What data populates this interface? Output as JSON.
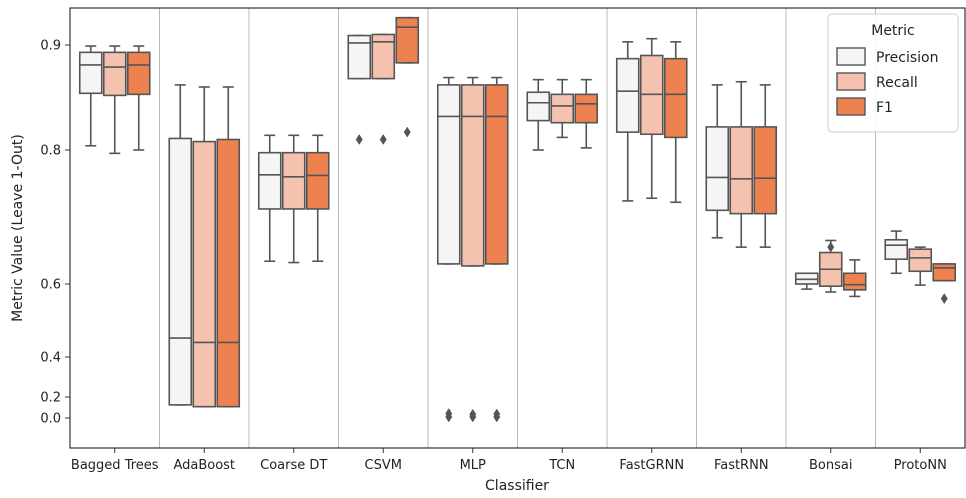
{
  "chart_data": {
    "type": "box",
    "xlabel": "Classifier",
    "ylabel": "Metric Value (Leave 1-Out)",
    "categories": [
      "Bagged Trees",
      "AdaBoost",
      "Coarse DT",
      "CSVM",
      "MLP",
      "TCN",
      "FastGRNN",
      "FastRNN",
      "Bonsai",
      "ProtoNN"
    ],
    "y_ticks": [
      {
        "value": 0.0,
        "label": "0.0"
      },
      {
        "value": 0.2,
        "label": "0.2"
      },
      {
        "value": 0.4,
        "label": "0.4"
      },
      {
        "value": 0.6,
        "label": "0.6"
      },
      {
        "value": 0.8,
        "label": "0.8"
      },
      {
        "value": 0.9,
        "label": "0.9"
      }
    ],
    "grid": {
      "vertical_separators": true,
      "horizontal": false
    },
    "legend": {
      "title": "Metric",
      "placement": "top-right"
    },
    "series": [
      {
        "name": "Precision",
        "color": "#f5f5f5",
        "boxes": [
          {
            "whislo": 0.804,
            "q1": 0.854,
            "med": 0.881,
            "q3": 0.893,
            "whishi": 0.899,
            "fliers": []
          },
          {
            "whislo": 0.125,
            "q1": 0.125,
            "med": 0.452,
            "q3": 0.811,
            "whishi": 0.862,
            "fliers": []
          },
          {
            "whislo": 0.634,
            "q1": 0.712,
            "med": 0.763,
            "q3": 0.796,
            "whishi": 0.814,
            "fliers": []
          },
          {
            "whislo": 0.868,
            "q1": 0.868,
            "med": 0.902,
            "q3": 0.909,
            "whishi": 0.909,
            "fliers": [
              0.81
            ]
          },
          {
            "whislo": 0.63,
            "q1": 0.63,
            "med": 0.832,
            "q3": 0.862,
            "whishi": 0.869,
            "fliers": [
              0.042,
              0.01
            ]
          },
          {
            "whislo": 0.8,
            "q1": 0.828,
            "med": 0.845,
            "q3": 0.855,
            "whishi": 0.867,
            "fliers": []
          },
          {
            "whislo": 0.724,
            "q1": 0.817,
            "med": 0.856,
            "q3": 0.887,
            "whishi": 0.903,
            "fliers": []
          },
          {
            "whislo": 0.669,
            "q1": 0.71,
            "med": 0.759,
            "q3": 0.822,
            "whishi": 0.862,
            "fliers": []
          },
          {
            "whislo": 0.586,
            "q1": 0.6,
            "med": 0.607,
            "q3": 0.616,
            "whishi": 0.616,
            "fliers": []
          },
          {
            "whislo": 0.616,
            "q1": 0.637,
            "med": 0.658,
            "q3": 0.666,
            "whishi": 0.679,
            "fliers": []
          }
        ]
      },
      {
        "name": "Recall",
        "color": "#f4c2ae",
        "boxes": [
          {
            "whislo": 0.795,
            "q1": 0.852,
            "med": 0.879,
            "q3": 0.893,
            "whishi": 0.899,
            "fliers": []
          },
          {
            "whislo": 0.108,
            "q1": 0.108,
            "med": 0.44,
            "q3": 0.808,
            "whishi": 0.86,
            "fliers": []
          },
          {
            "whislo": 0.632,
            "q1": 0.712,
            "med": 0.76,
            "q3": 0.796,
            "whishi": 0.814,
            "fliers": []
          },
          {
            "whislo": 0.868,
            "q1": 0.868,
            "med": 0.903,
            "q3": 0.91,
            "whishi": 0.91,
            "fliers": [
              0.81
            ]
          },
          {
            "whislo": 0.627,
            "q1": 0.627,
            "med": 0.832,
            "q3": 0.862,
            "whishi": 0.869,
            "fliers": [
              0.035,
              0.01
            ]
          },
          {
            "whislo": 0.812,
            "q1": 0.826,
            "med": 0.842,
            "q3": 0.853,
            "whishi": 0.867,
            "fliers": []
          },
          {
            "whislo": 0.728,
            "q1": 0.815,
            "med": 0.853,
            "q3": 0.89,
            "whishi": 0.906,
            "fliers": []
          },
          {
            "whislo": 0.655,
            "q1": 0.705,
            "med": 0.757,
            "q3": 0.822,
            "whishi": 0.865,
            "fliers": []
          },
          {
            "whislo": 0.578,
            "q1": 0.594,
            "med": 0.622,
            "q3": 0.647,
            "whishi": 0.665,
            "fliers": [
              0.655
            ]
          },
          {
            "whislo": 0.597,
            "q1": 0.619,
            "med": 0.639,
            "q3": 0.652,
            "whishi": 0.655,
            "fliers": []
          }
        ]
      },
      {
        "name": "F1",
        "color": "#ee8150",
        "boxes": [
          {
            "whislo": 0.8,
            "q1": 0.853,
            "med": 0.881,
            "q3": 0.893,
            "whishi": 0.899,
            "fliers": []
          },
          {
            "whislo": 0.108,
            "q1": 0.108,
            "med": 0.44,
            "q3": 0.81,
            "whishi": 0.86,
            "fliers": []
          },
          {
            "whislo": 0.634,
            "q1": 0.712,
            "med": 0.762,
            "q3": 0.796,
            "whishi": 0.814,
            "fliers": []
          },
          {
            "whislo": 0.883,
            "q1": 0.883,
            "med": 0.917,
            "q3": 0.926,
            "whishi": 0.926,
            "fliers": [
              0.817
            ]
          },
          {
            "whislo": 0.63,
            "q1": 0.63,
            "med": 0.832,
            "q3": 0.862,
            "whishi": 0.869,
            "fliers": [
              0.038,
              0.01
            ]
          },
          {
            "whislo": 0.802,
            "q1": 0.826,
            "med": 0.844,
            "q3": 0.853,
            "whishi": 0.867,
            "fliers": []
          },
          {
            "whislo": 0.722,
            "q1": 0.812,
            "med": 0.853,
            "q3": 0.887,
            "whishi": 0.903,
            "fliers": []
          },
          {
            "whislo": 0.655,
            "q1": 0.705,
            "med": 0.758,
            "q3": 0.822,
            "whishi": 0.862,
            "fliers": []
          },
          {
            "whislo": 0.566,
            "q1": 0.584,
            "med": 0.598,
            "q3": 0.616,
            "whishi": 0.636,
            "fliers": []
          },
          {
            "whislo": 0.605,
            "q1": 0.605,
            "med": 0.624,
            "q3": 0.63,
            "whishi": 0.63,
            "fliers": [
              0.56
            ]
          }
        ]
      }
    ]
  }
}
